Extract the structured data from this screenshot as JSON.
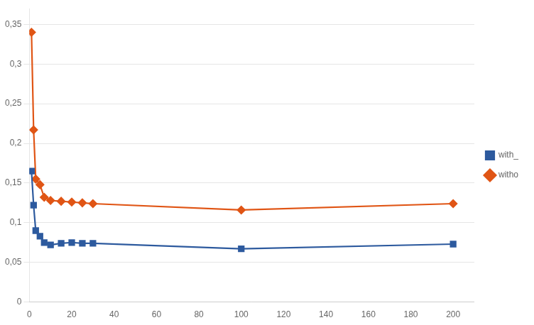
{
  "chart_data": {
    "type": "line",
    "x": [
      1,
      2,
      3,
      5,
      7,
      10,
      15,
      20,
      25,
      30,
      100,
      200
    ],
    "series": [
      {
        "name": "with_",
        "color": "#2d5a9e",
        "marker": "square",
        "values": [
          0.165,
          0.122,
          0.09,
          0.083,
          0.075,
          0.072,
          0.074,
          0.075,
          0.074,
          0.074,
          0.067,
          0.073
        ]
      },
      {
        "name": "witho",
        "color": "#e05515",
        "marker": "diamond",
        "values": [
          0.34,
          0.217,
          0.155,
          0.148,
          0.132,
          0.128,
          0.127,
          0.126,
          0.125,
          0.124,
          0.116,
          0.124
        ]
      }
    ],
    "xlim": [
      0,
      210
    ],
    "ylim": [
      0,
      0.37
    ],
    "xticks": [
      0,
      20,
      40,
      60,
      80,
      100,
      120,
      140,
      160,
      180,
      200
    ],
    "yticks": [
      0,
      {
        "value": 0.05,
        "label": "0,05"
      },
      {
        "value": 0.1,
        "label": "0,1"
      },
      {
        "value": 0.15,
        "label": "0,15"
      },
      {
        "value": 0.2,
        "label": "0,2"
      },
      {
        "value": 0.25,
        "label": "0,25"
      },
      {
        "value": 0.3,
        "label": "0,3"
      },
      {
        "value": 0.35,
        "label": "0,35"
      }
    ],
    "grid": "y",
    "legend": "right"
  }
}
